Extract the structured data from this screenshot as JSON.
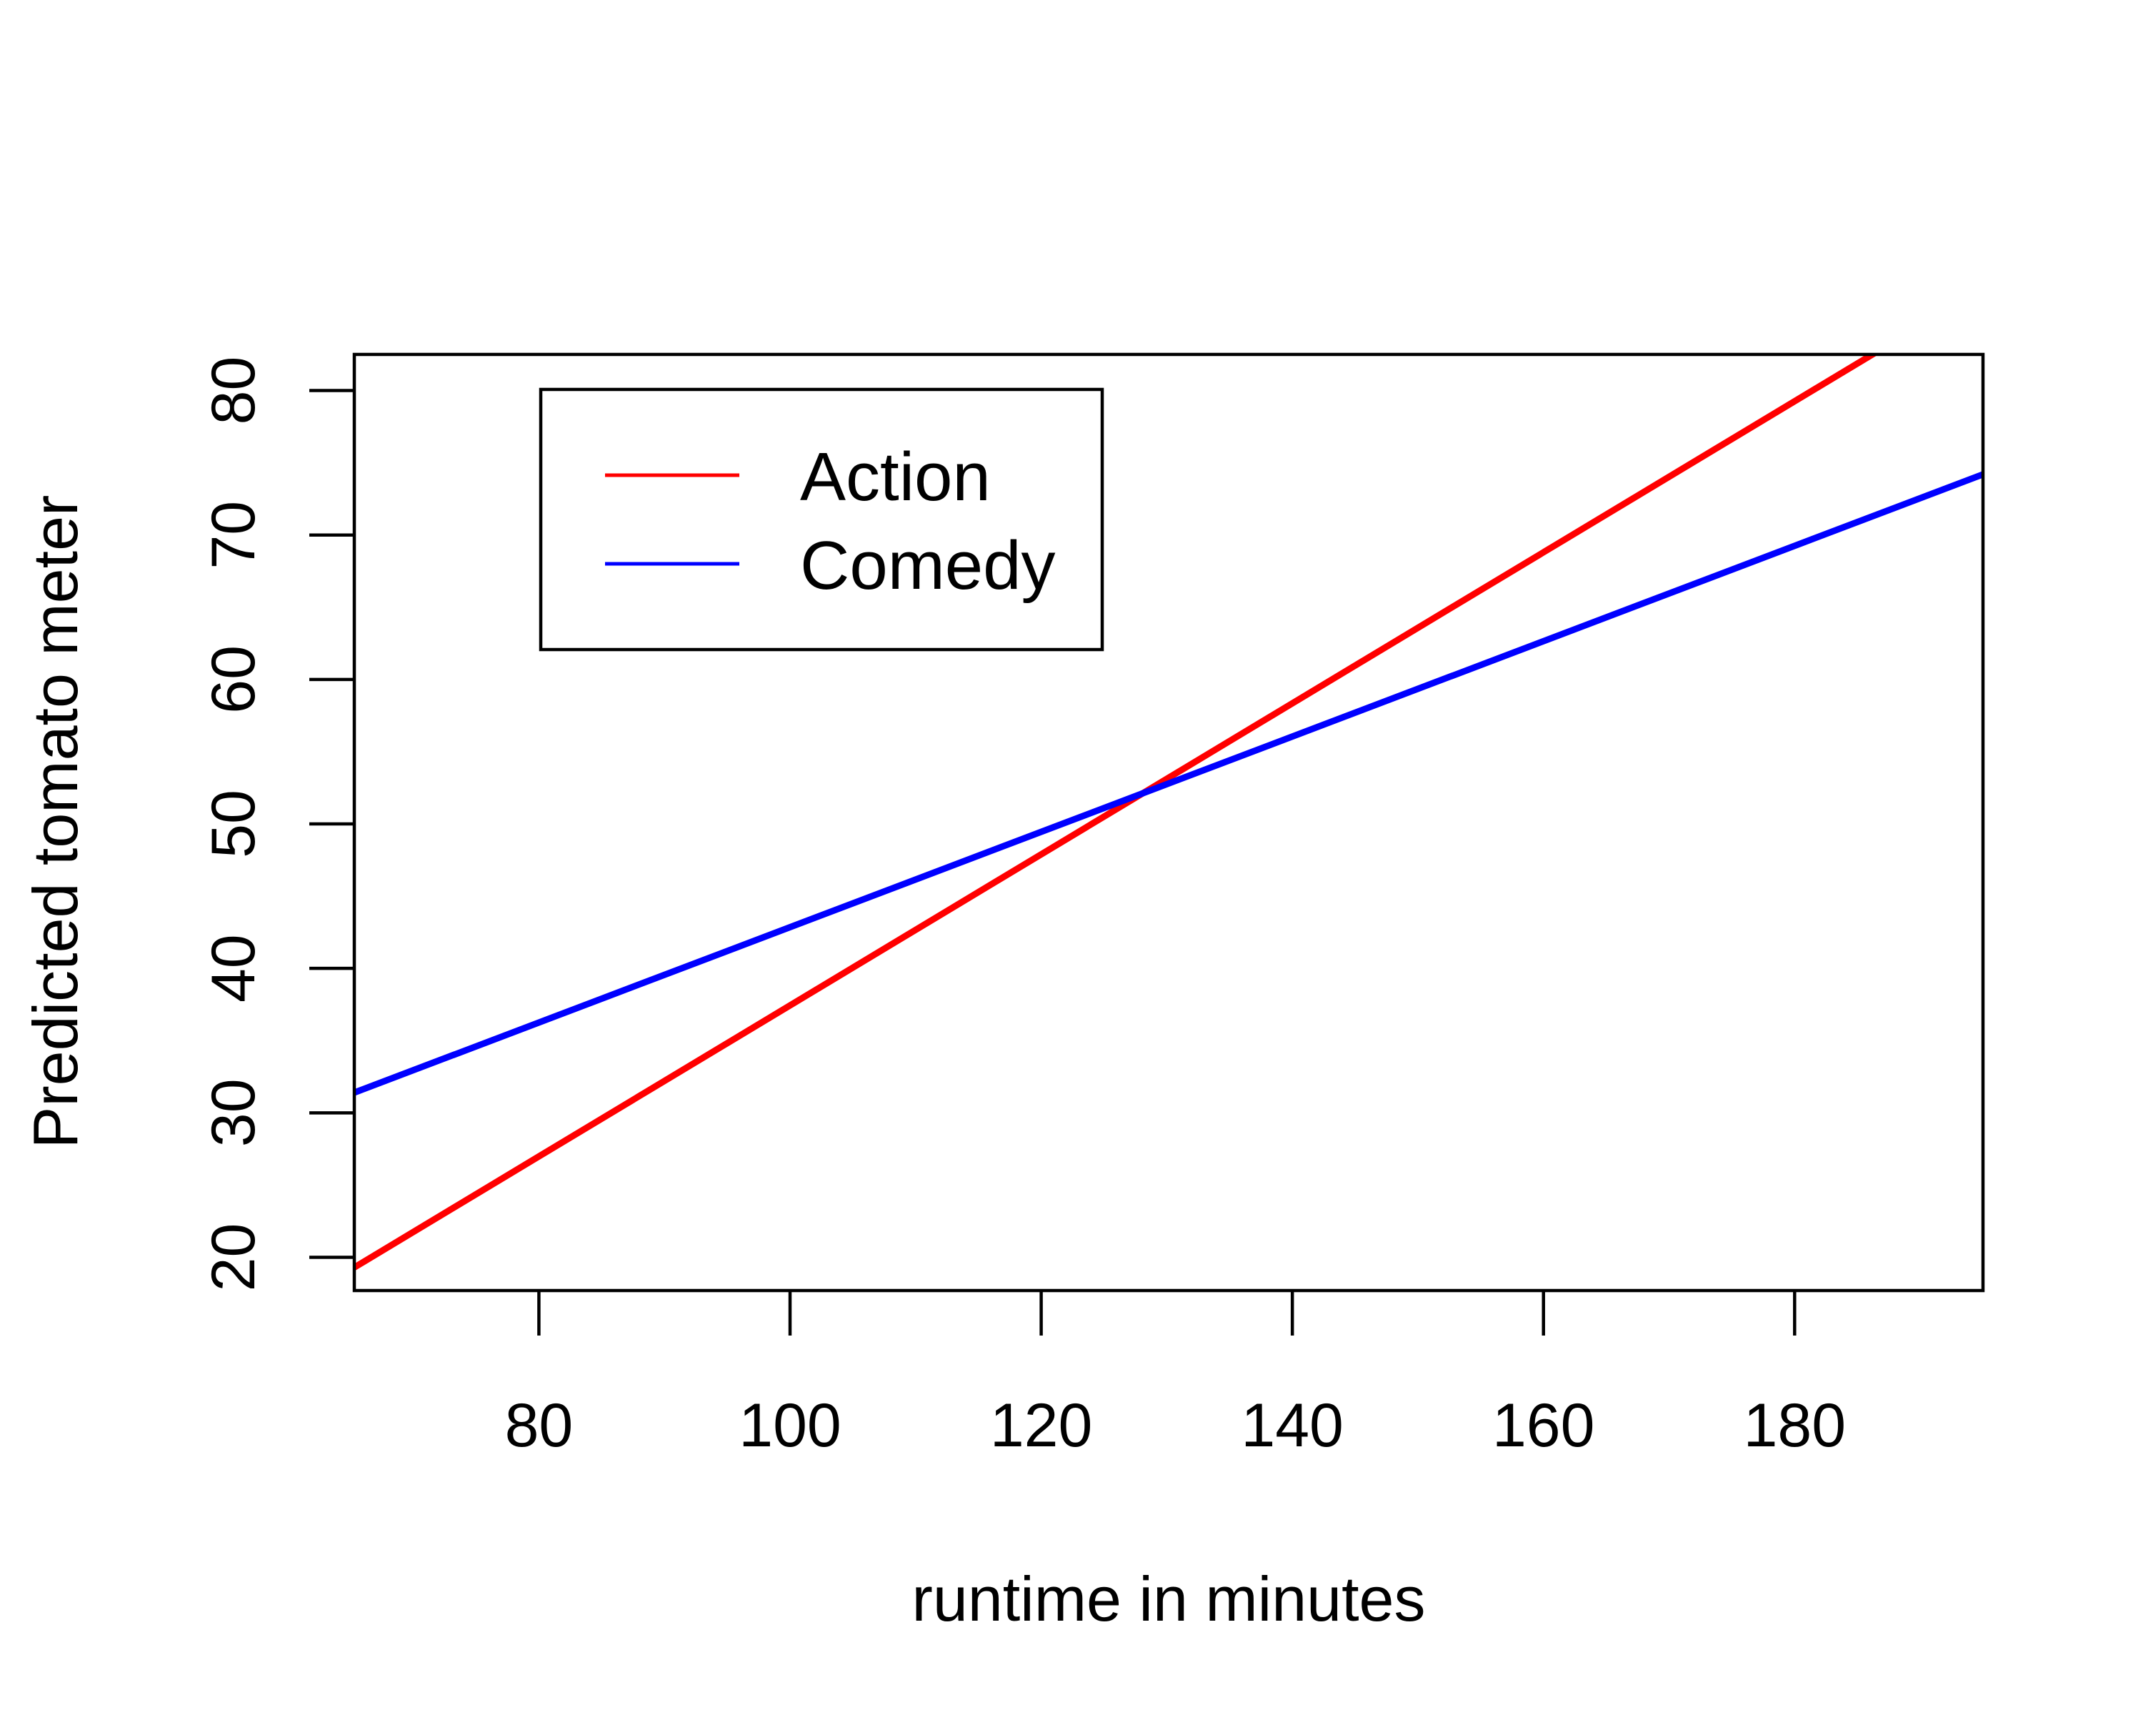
{
  "chart_data": {
    "type": "line",
    "title": "",
    "xlabel": "runtime in minutes",
    "ylabel": "Predicted tomato meter",
    "xlim": [
      65.3,
      195
    ],
    "ylim": [
      17.7,
      82.5
    ],
    "x_ticks": [
      80,
      100,
      120,
      140,
      160,
      180
    ],
    "y_ticks": [
      20,
      30,
      40,
      50,
      60,
      70,
      80
    ],
    "x_tick_labels": [
      "80",
      "100",
      "120",
      "140",
      "160",
      "180"
    ],
    "y_tick_labels": [
      "20",
      "30",
      "40",
      "50",
      "60",
      "70",
      "80"
    ],
    "grid": false,
    "legend_position": "top-left",
    "series": [
      {
        "name": "Action",
        "color": "#ff0000",
        "x": [
          65.3,
          195
        ],
        "y": [
          19.3,
          87.1
        ]
      },
      {
        "name": "Comedy",
        "color": "#0000ff",
        "x": [
          65.3,
          195
        ],
        "y": [
          31.4,
          74.2
        ]
      }
    ]
  }
}
